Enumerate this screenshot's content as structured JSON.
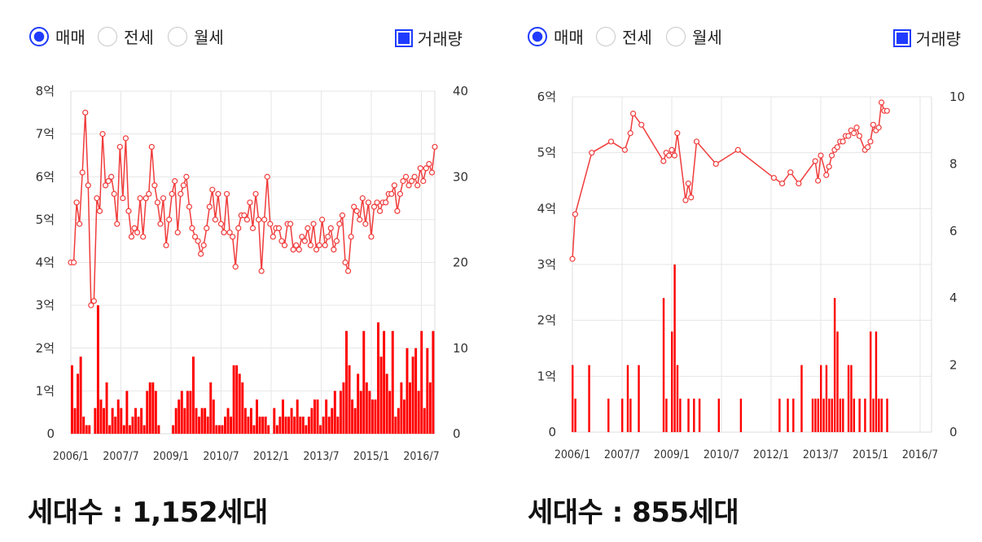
{
  "charts": [
    {
      "radios": [
        {
          "label": "매매",
          "selected": true
        },
        {
          "label": "전세",
          "selected": false
        },
        {
          "label": "월세",
          "selected": false
        }
      ],
      "volume_checkbox": {
        "label": "거래량",
        "checked": true
      },
      "caption": "세대수 : 1,152세대"
    },
    {
      "radios": [
        {
          "label": "매매",
          "selected": true
        },
        {
          "label": "전세",
          "selected": false
        },
        {
          "label": "월세",
          "selected": false
        }
      ],
      "volume_checkbox": {
        "label": "거래량",
        "checked": true
      },
      "caption": "세대수 : 855세대"
    }
  ],
  "colors": {
    "price_line": "#f03c3c",
    "volume_bar": "#ff0000",
    "selected": "#1f3bff",
    "grid": "#e6e6e6"
  },
  "chart_data": [
    {
      "type": "line+bar",
      "x_ticks": [
        "2006/1",
        "2007/7",
        "2009/1",
        "2010/7",
        "2012/1",
        "2013/7",
        "2015/1",
        "2016/7"
      ],
      "left_axis": {
        "ticks": [
          "0",
          "1억",
          "2억",
          "3억",
          "4억",
          "5억",
          "6억",
          "7억",
          "8억"
        ],
        "range": [
          0,
          8
        ]
      },
      "right_axis": {
        "ticks": [
          "0",
          "10",
          "20",
          "30",
          "40"
        ],
        "range": [
          0,
          40
        ]
      },
      "price": [
        4.0,
        4.0,
        5.4,
        4.9,
        6.1,
        7.5,
        5.8,
        3.0,
        3.1,
        5.5,
        5.2,
        7.0,
        5.8,
        5.9,
        6.0,
        5.6,
        4.9,
        6.7,
        5.5,
        6.9,
        5.2,
        4.6,
        4.8,
        4.7,
        5.5,
        4.6,
        5.5,
        5.6,
        6.7,
        5.8,
        5.4,
        4.9,
        5.5,
        4.4,
        5.0,
        5.6,
        5.9,
        4.7,
        5.6,
        5.8,
        6.0,
        5.3,
        4.8,
        4.6,
        4.5,
        4.2,
        4.4,
        4.8,
        5.3,
        5.7,
        5.0,
        5.6,
        4.9,
        4.7,
        5.6,
        4.7,
        4.6,
        3.9,
        4.8,
        5.1,
        5.1,
        5.0,
        5.4,
        4.8,
        5.6,
        5.0,
        3.8,
        5.0,
        6.0,
        4.9,
        4.6,
        4.8,
        4.8,
        4.5,
        4.4,
        4.9,
        4.9,
        4.3,
        4.4,
        4.3,
        4.6,
        4.5,
        4.8,
        4.4,
        4.9,
        4.3,
        4.4,
        5.0,
        4.4,
        4.6,
        4.8,
        4.3,
        4.5,
        4.9,
        5.1,
        4.0,
        3.8,
        4.6,
        5.3,
        5.2,
        5.0,
        5.5,
        4.9,
        5.4,
        4.6,
        5.3,
        5.4,
        5.2,
        5.4,
        5.4,
        5.6,
        5.6,
        5.8,
        5.2,
        5.6,
        5.9,
        6.0,
        5.8,
        5.9,
        6.0,
        5.8,
        6.2,
        5.9,
        6.2,
        6.3,
        6.1,
        6.7
      ],
      "volume": [
        8,
        3,
        7,
        9,
        2,
        1,
        1,
        0,
        3,
        15,
        4,
        3,
        6,
        1,
        3,
        2,
        4,
        3,
        1,
        5,
        1,
        2,
        3,
        2,
        3,
        1,
        5,
        6,
        6,
        5,
        1,
        0,
        0,
        0,
        0,
        1,
        3,
        4,
        5,
        3,
        5,
        5,
        9,
        3,
        2,
        3,
        3,
        2,
        6,
        4,
        1,
        1,
        1,
        2,
        3,
        2,
        8,
        8,
        7,
        6,
        3,
        2,
        3,
        1,
        4,
        2,
        2,
        2,
        1,
        0,
        3,
        1,
        2,
        4,
        2,
        2,
        3,
        2,
        4,
        2,
        2,
        1,
        2,
        3,
        4,
        4,
        1,
        2,
        4,
        2,
        3,
        5,
        2,
        5,
        6,
        12,
        8,
        4,
        3,
        7,
        5,
        12,
        6,
        5,
        4,
        4,
        13,
        9,
        12,
        7,
        5,
        12,
        2,
        3,
        6,
        4,
        10,
        6,
        9,
        10,
        5,
        12,
        3,
        10,
        6,
        12
      ],
      "volume_visible_bars": 125
    },
    {
      "type": "line+bar",
      "x_ticks": [
        "2006/1",
        "2007/7",
        "2009/1",
        "2010/7",
        "2012/1",
        "2013/7",
        "2015/1",
        "2016/7"
      ],
      "left_axis": {
        "ticks": [
          "0",
          "1억",
          "2억",
          "3억",
          "4억",
          "5억",
          "6억"
        ],
        "range": [
          0,
          6
        ]
      },
      "right_axis": {
        "ticks": [
          "0",
          "2",
          "4",
          "6",
          "8",
          "10"
        ],
        "range": [
          0,
          10
        ]
      },
      "price_points": [
        {
          "t": 0.0,
          "v": 3.1
        },
        {
          "t": 0.5,
          "v": 3.9
        },
        {
          "t": 3.5,
          "v": 5.0
        },
        {
          "t": 7.0,
          "v": 5.2
        },
        {
          "t": 9.5,
          "v": 5.05
        },
        {
          "t": 10.5,
          "v": 5.35
        },
        {
          "t": 11.0,
          "v": 5.7
        },
        {
          "t": 12.5,
          "v": 5.5
        },
        {
          "t": 16.5,
          "v": 4.85
        },
        {
          "t": 17.0,
          "v": 5.0
        },
        {
          "t": 17.5,
          "v": 4.95
        },
        {
          "t": 18.0,
          "v": 5.05
        },
        {
          "t": 18.5,
          "v": 4.95
        },
        {
          "t": 19.0,
          "v": 5.35
        },
        {
          "t": 20.5,
          "v": 4.15
        },
        {
          "t": 21.0,
          "v": 4.45
        },
        {
          "t": 21.5,
          "v": 4.2
        },
        {
          "t": 22.5,
          "v": 5.2
        },
        {
          "t": 26.0,
          "v": 4.8
        },
        {
          "t": 30.0,
          "v": 5.05
        },
        {
          "t": 36.5,
          "v": 4.55
        },
        {
          "t": 38.0,
          "v": 4.45
        },
        {
          "t": 39.5,
          "v": 4.65
        },
        {
          "t": 41.0,
          "v": 4.45
        },
        {
          "t": 44.0,
          "v": 4.85
        },
        {
          "t": 44.5,
          "v": 4.5
        },
        {
          "t": 45.0,
          "v": 4.95
        },
        {
          "t": 46.0,
          "v": 4.6
        },
        {
          "t": 46.5,
          "v": 4.75
        },
        {
          "t": 47.0,
          "v": 4.95
        },
        {
          "t": 47.5,
          "v": 5.05
        },
        {
          "t": 48.0,
          "v": 5.1
        },
        {
          "t": 48.5,
          "v": 5.2
        },
        {
          "t": 49.0,
          "v": 5.2
        },
        {
          "t": 49.5,
          "v": 5.3
        },
        {
          "t": 50.0,
          "v": 5.3
        },
        {
          "t": 50.5,
          "v": 5.4
        },
        {
          "t": 51.0,
          "v": 5.35
        },
        {
          "t": 51.5,
          "v": 5.45
        },
        {
          "t": 52.0,
          "v": 5.3
        },
        {
          "t": 53.0,
          "v": 5.05
        },
        {
          "t": 53.5,
          "v": 5.1
        },
        {
          "t": 54.0,
          "v": 5.2
        },
        {
          "t": 54.5,
          "v": 5.5
        },
        {
          "t": 55.0,
          "v": 5.4
        },
        {
          "t": 55.5,
          "v": 5.45
        },
        {
          "t": 56.0,
          "v": 5.9
        },
        {
          "t": 56.5,
          "v": 5.75
        },
        {
          "t": 57.0,
          "v": 5.75
        }
      ],
      "volume_points": [
        {
          "t": 0.0,
          "v": 2
        },
        {
          "t": 0.5,
          "v": 1
        },
        {
          "t": 3.0,
          "v": 2
        },
        {
          "t": 6.5,
          "v": 1
        },
        {
          "t": 9.0,
          "v": 1
        },
        {
          "t": 10.0,
          "v": 2
        },
        {
          "t": 10.5,
          "v": 1
        },
        {
          "t": 12.0,
          "v": 2
        },
        {
          "t": 16.5,
          "v": 4
        },
        {
          "t": 17.0,
          "v": 1
        },
        {
          "t": 18.0,
          "v": 3
        },
        {
          "t": 18.5,
          "v": 5
        },
        {
          "t": 19.0,
          "v": 2
        },
        {
          "t": 19.5,
          "v": 1
        },
        {
          "t": 21.0,
          "v": 1
        },
        {
          "t": 22.0,
          "v": 1
        },
        {
          "t": 23.0,
          "v": 1
        },
        {
          "t": 26.5,
          "v": 1
        },
        {
          "t": 30.5,
          "v": 1
        },
        {
          "t": 37.5,
          "v": 1
        },
        {
          "t": 39.0,
          "v": 1
        },
        {
          "t": 40.0,
          "v": 1
        },
        {
          "t": 41.5,
          "v": 2
        },
        {
          "t": 43.5,
          "v": 1
        },
        {
          "t": 44.0,
          "v": 1
        },
        {
          "t": 44.5,
          "v": 1
        },
        {
          "t": 45.0,
          "v": 2
        },
        {
          "t": 45.5,
          "v": 1
        },
        {
          "t": 46.0,
          "v": 2
        },
        {
          "t": 46.5,
          "v": 1
        },
        {
          "t": 47.0,
          "v": 1
        },
        {
          "t": 47.5,
          "v": 4
        },
        {
          "t": 48.0,
          "v": 3
        },
        {
          "t": 48.5,
          "v": 1
        },
        {
          "t": 49.0,
          "v": 1
        },
        {
          "t": 50.0,
          "v": 2
        },
        {
          "t": 50.5,
          "v": 2
        },
        {
          "t": 51.0,
          "v": 1
        },
        {
          "t": 52.0,
          "v": 1
        },
        {
          "t": 53.0,
          "v": 1
        },
        {
          "t": 54.0,
          "v": 3
        },
        {
          "t": 54.5,
          "v": 1
        },
        {
          "t": 55.0,
          "v": 3
        },
        {
          "t": 55.5,
          "v": 1
        },
        {
          "t": 56.0,
          "v": 1
        },
        {
          "t": 57.0,
          "v": 1
        }
      ]
    }
  ]
}
